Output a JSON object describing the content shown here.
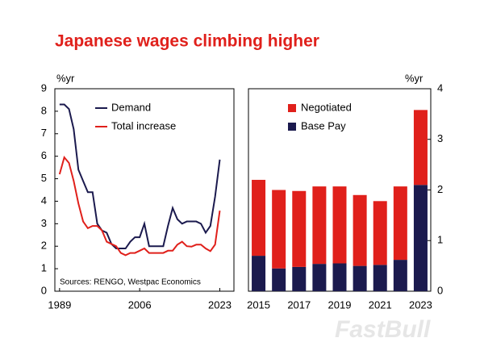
{
  "title": "Japanese wages climbing higher",
  "watermark": "FastBull",
  "chart_data": [
    {
      "type": "line",
      "y_unit_label": "%yr",
      "source": "Sources: RENGO, Westpac Economics",
      "x": [
        1989,
        1990,
        1991,
        1992,
        1993,
        1994,
        1995,
        1996,
        1997,
        1998,
        1999,
        2000,
        2001,
        2002,
        2003,
        2004,
        2005,
        2006,
        2007,
        2008,
        2009,
        2010,
        2011,
        2012,
        2013,
        2014,
        2015,
        2016,
        2017,
        2018,
        2019,
        2020,
        2021,
        2022,
        2023
      ],
      "series": [
        {
          "name": "Demand",
          "color": "#1b1a4e",
          "values": [
            8.3,
            8.3,
            8.1,
            7.2,
            5.4,
            4.9,
            4.4,
            4.4,
            3.0,
            2.7,
            2.6,
            2.1,
            1.9,
            1.9,
            1.9,
            2.2,
            2.4,
            2.4,
            3.0,
            2.0,
            2.0,
            2.0,
            2.0,
            2.9,
            3.7,
            3.2,
            3.0,
            3.1,
            3.1,
            3.1,
            3.0,
            2.6,
            2.9,
            4.2,
            5.85
          ]
        },
        {
          "name": "Total increase",
          "color": "#e0201b",
          "values": [
            5.2,
            5.95,
            5.7,
            4.9,
            3.9,
            3.1,
            2.8,
            2.9,
            2.9,
            2.7,
            2.2,
            2.1,
            2.0,
            1.7,
            1.6,
            1.7,
            1.7,
            1.8,
            1.9,
            1.7,
            1.7,
            1.7,
            1.7,
            1.8,
            1.8,
            2.07,
            2.2,
            2.0,
            1.98,
            2.07,
            2.07,
            1.9,
            1.78,
            2.07,
            3.58
          ]
        }
      ],
      "xlim": [
        1988,
        2026
      ],
      "xticks": [
        1989,
        2006,
        2023
      ],
      "ylim": [
        0,
        9
      ],
      "yticks": [
        0,
        1,
        2,
        3,
        4,
        5,
        6,
        7,
        8,
        9
      ]
    },
    {
      "type": "stacked-bar",
      "y_unit_label": "%yr",
      "categories": [
        "2015",
        null,
        "2017",
        null,
        "2019",
        null,
        "2021",
        null,
        "2023"
      ],
      "series": [
        {
          "name": "Negotiated",
          "color": "#e0201b",
          "values": [
            1.5,
            1.55,
            1.5,
            1.53,
            1.52,
            1.4,
            1.26,
            1.45,
            1.48
          ]
        },
        {
          "name": "Base Pay",
          "color": "#1b1a4e",
          "values": [
            0.7,
            0.45,
            0.48,
            0.54,
            0.55,
            0.5,
            0.52,
            0.62,
            2.1
          ]
        }
      ],
      "ylim": [
        0,
        4
      ],
      "yticks": [
        0,
        1,
        2,
        3,
        4
      ]
    }
  ]
}
